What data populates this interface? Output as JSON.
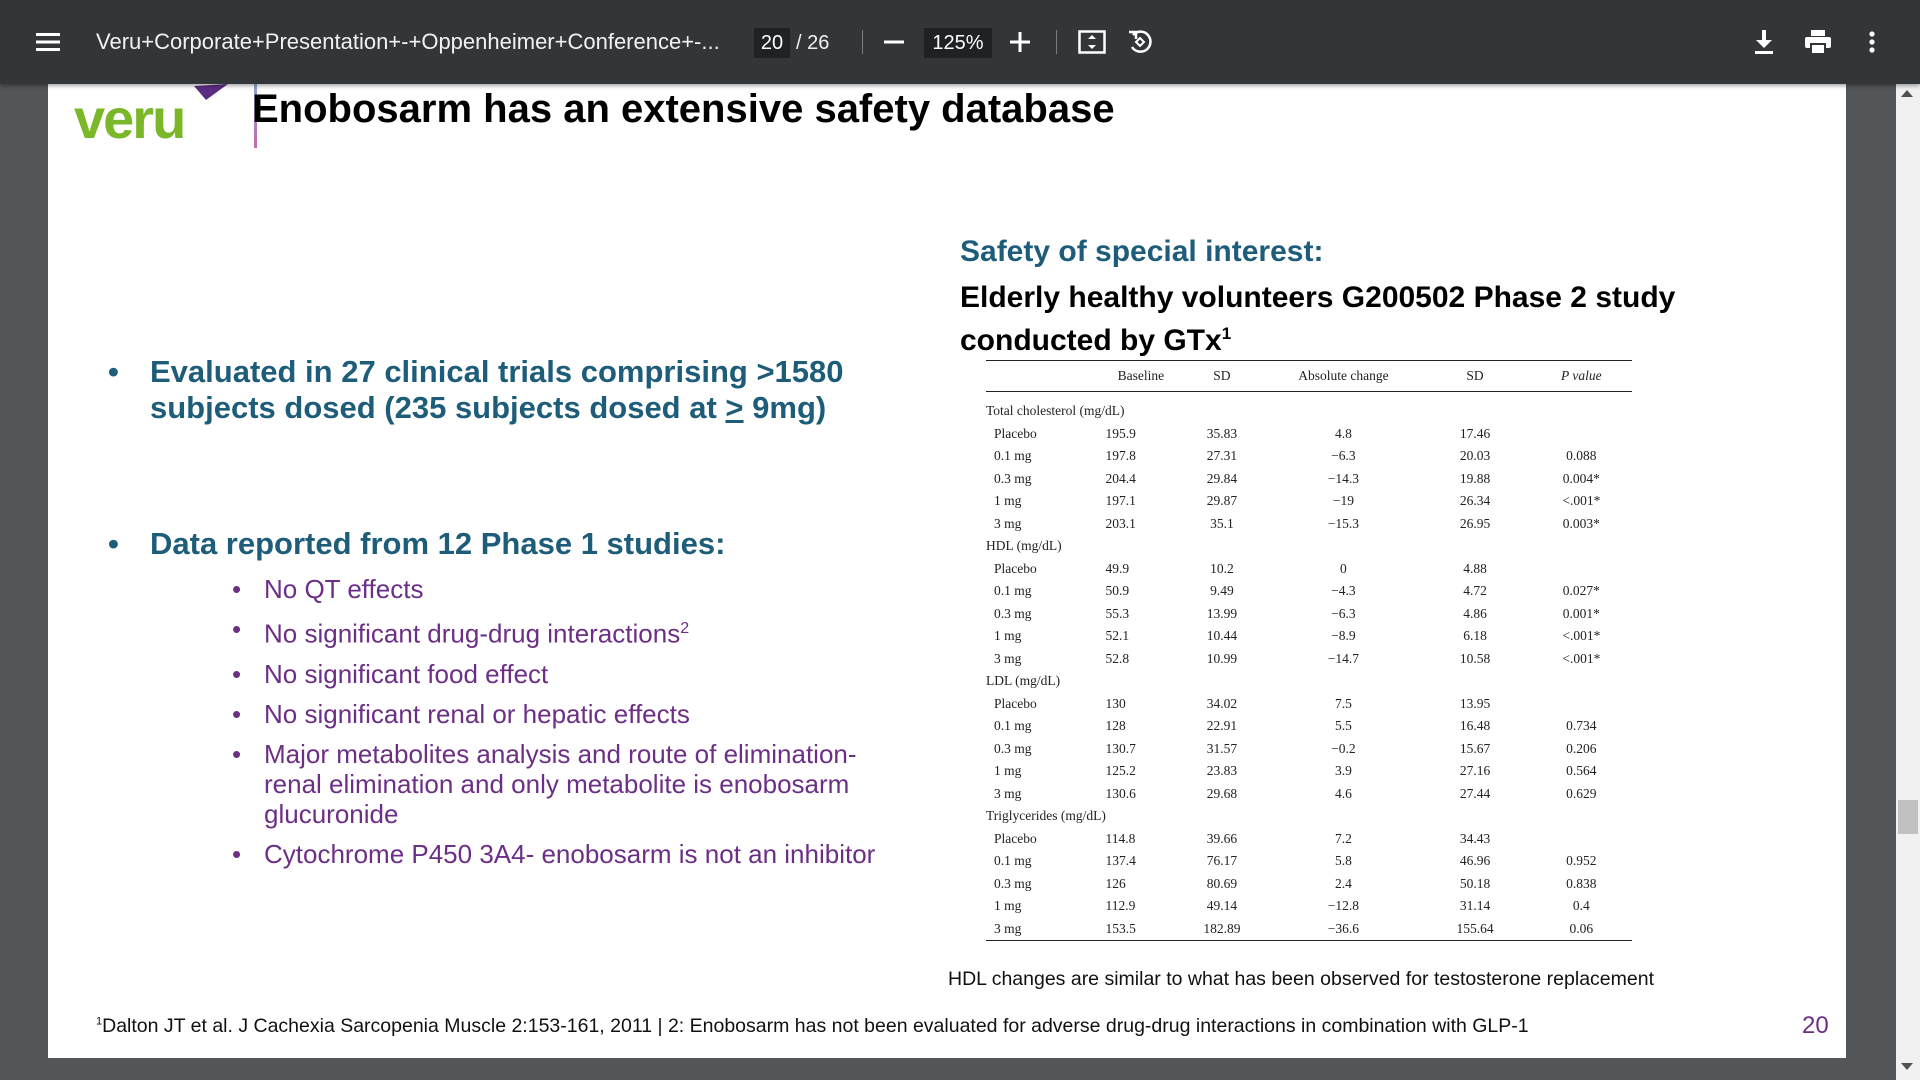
{
  "toolbar": {
    "title": "Veru+Corporate+Presentation+-+Oppenheimer+Conference+-...",
    "page_current": "20",
    "page_total": "/ 26",
    "zoom": "125%"
  },
  "slide": {
    "logo_text": "veru",
    "title": "Enobosarm has an extensive safety database",
    "bullets": [
      {
        "pre": "Evaluated in 27 clinical trials comprising >1580 subjects dosed (235 subjects dosed at ",
        "underlined": ">",
        "post": " 9mg)"
      },
      {
        "text": "Data reported from 12 Phase 1 studies:"
      }
    ],
    "sub_bullets": [
      {
        "text": "No QT effects",
        "sup": ""
      },
      {
        "text": "No significant drug-drug interactions",
        "sup": "2"
      },
      {
        "text": "No significant food effect",
        "sup": ""
      },
      {
        "text": "No significant renal or hepatic effects",
        "sup": ""
      },
      {
        "text": "Major metabolites analysis and route of elimination- renal elimination and only metabolite is enobosarm glucuronide",
        "sup": ""
      },
      {
        "text": "Cytochrome P450 3A4- enobosarm is not an inhibitor",
        "sup": ""
      }
    ],
    "bullet_symbol": "•",
    "safety_heading": "Safety of special interest:",
    "study_title": "Elderly healthy volunteers G200502 Phase 2 study conducted by GTx",
    "study_title_sup": "1",
    "table": {
      "headers": [
        "Baseline",
        "SD",
        "Absolute change",
        "SD",
        "P value"
      ],
      "groups": [
        {
          "name": "Total cholesterol (mg/dL)",
          "rows": [
            [
              "Placebo",
              "195.9",
              "35.83",
              "4.8",
              "17.46",
              ""
            ],
            [
              "0.1 mg",
              "197.8",
              "27.31",
              "−6.3",
              "20.03",
              "0.088"
            ],
            [
              "0.3 mg",
              "204.4",
              "29.84",
              "−14.3",
              "19.88",
              "0.004*"
            ],
            [
              "1 mg",
              "197.1",
              "29.87",
              "−19",
              "26.34",
              "<.001*"
            ],
            [
              "3 mg",
              "203.1",
              "35.1",
              "−15.3",
              "26.95",
              "0.003*"
            ]
          ]
        },
        {
          "name": "HDL (mg/dL)",
          "rows": [
            [
              "Placebo",
              "49.9",
              "10.2",
              "0",
              "4.88",
              ""
            ],
            [
              "0.1 mg",
              "50.9",
              "9.49",
              "−4.3",
              "4.72",
              "0.027*"
            ],
            [
              "0.3 mg",
              "55.3",
              "13.99",
              "−6.3",
              "4.86",
              "0.001*"
            ],
            [
              "1 mg",
              "52.1",
              "10.44",
              "−8.9",
              "6.18",
              "<.001*"
            ],
            [
              "3 mg",
              "52.8",
              "10.99",
              "−14.7",
              "10.58",
              "<.001*"
            ]
          ]
        },
        {
          "name": "LDL (mg/dL)",
          "rows": [
            [
              "Placebo",
              "130",
              "34.02",
              "7.5",
              "13.95",
              ""
            ],
            [
              "0.1 mg",
              "128",
              "22.91",
              "5.5",
              "16.48",
              "0.734"
            ],
            [
              "0.3 mg",
              "130.7",
              "31.57",
              "−0.2",
              "15.67",
              "0.206"
            ],
            [
              "1 mg",
              "125.2",
              "23.83",
              "3.9",
              "27.16",
              "0.564"
            ],
            [
              "3 mg",
              "130.6",
              "29.68",
              "4.6",
              "27.44",
              "0.629"
            ]
          ]
        },
        {
          "name": "Triglycerides (mg/dL)",
          "rows": [
            [
              "Placebo",
              "114.8",
              "39.66",
              "7.2",
              "34.43",
              ""
            ],
            [
              "0.1 mg",
              "137.4",
              "76.17",
              "5.8",
              "46.96",
              "0.952"
            ],
            [
              "0.3 mg",
              "126",
              "80.69",
              "2.4",
              "50.18",
              "0.838"
            ],
            [
              "1 mg",
              "112.9",
              "49.14",
              "−12.8",
              "31.14",
              "0.4"
            ],
            [
              "3 mg",
              "153.5",
              "182.89",
              "−36.6",
              "155.64",
              "0.06"
            ]
          ]
        }
      ]
    },
    "hdl_note": "HDL changes are similar to what has been observed for testosterone replacement",
    "footnote_sup": "1",
    "footnote": "Dalton JT et al. J Cachexia Sarcopenia Muscle 2:153-161, 2011 | 2: Enobosarm has not been evaluated for adverse drug-drug interactions in combination with GLP-1",
    "page_number": "20"
  },
  "colors": {
    "toolbar_bg": "#323639",
    "viewer_bg": "#525659",
    "teal": "#1e5d7a",
    "purple": "#6b2f86",
    "logo_green": "#7ab829"
  }
}
